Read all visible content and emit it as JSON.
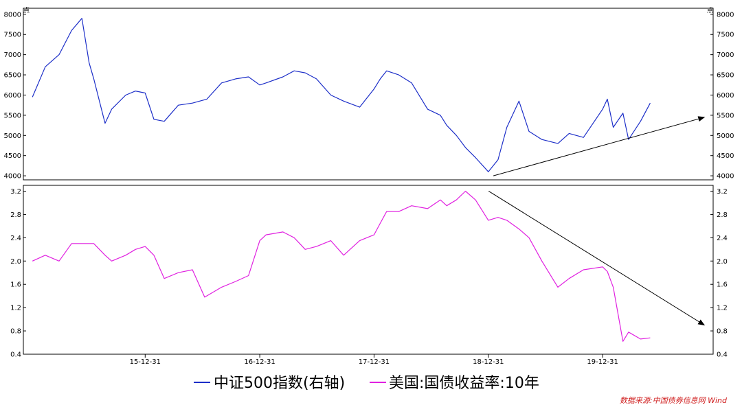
{
  "chart_data": {
    "type": "line",
    "x_tick_labels": [
      "15-12-31",
      "16-12-31",
      "17-12-31",
      "18-12-31",
      "19-12-31"
    ],
    "panels": [
      {
        "id": "top",
        "axis_unit": "点",
        "ylim": [
          3900,
          8150
        ],
        "y_ticks": [
          4000,
          4500,
          5000,
          5500,
          6000,
          6500,
          7000,
          7500,
          8000
        ],
        "series": {
          "name": "中证500指数(右轴)",
          "color": "#1c2ec8",
          "x": [
            "2015-01-05",
            "2015-02-15",
            "2015-03-31",
            "2015-05-10",
            "2015-06-12",
            "2015-07-05",
            "2015-07-20",
            "2015-08-25",
            "2015-09-15",
            "2015-10-30",
            "2015-11-30",
            "2015-12-31",
            "2016-01-28",
            "2016-03-01",
            "2016-04-15",
            "2016-05-30",
            "2016-07-15",
            "2016-08-31",
            "2016-10-15",
            "2016-11-25",
            "2016-12-31",
            "2017-01-20",
            "2017-03-15",
            "2017-04-20",
            "2017-05-25",
            "2017-06-30",
            "2017-08-15",
            "2017-09-25",
            "2017-11-15",
            "2017-12-31",
            "2018-01-20",
            "2018-02-09",
            "2018-03-20",
            "2018-04-30",
            "2018-06-20",
            "2018-07-31",
            "2018-08-20",
            "2018-09-20",
            "2018-10-19",
            "2018-11-20",
            "2018-12-31",
            "2019-01-31",
            "2019-02-28",
            "2019-04-08",
            "2019-05-10",
            "2019-06-20",
            "2019-08-10",
            "2019-09-15",
            "2019-10-31",
            "2019-12-31",
            "2020-01-15",
            "2020-02-03",
            "2020-03-05",
            "2020-03-23",
            "2020-04-30",
            "2020-05-31"
          ],
          "y": [
            5950,
            6700,
            7000,
            7600,
            7900,
            6800,
            6400,
            5300,
            5650,
            6000,
            6100,
            6050,
            5400,
            5350,
            5750,
            5800,
            5900,
            6300,
            6400,
            6450,
            6250,
            6300,
            6450,
            6600,
            6550,
            6400,
            6000,
            5850,
            5700,
            6150,
            6400,
            6600,
            6500,
            6300,
            5650,
            5500,
            5250,
            5000,
            4700,
            4450,
            4100,
            4400,
            5200,
            5850,
            5100,
            4900,
            4800,
            5050,
            4950,
            5650,
            5900,
            5200,
            5550,
            4900,
            5350,
            5800
          ]
        },
        "arrow": {
          "from": [
            "2019-01-16",
            4000
          ],
          "to": [
            "2020-11-20",
            5450
          ]
        }
      },
      {
        "id": "bottom",
        "ylim": [
          0.4,
          3.3
        ],
        "y_ticks": [
          0.4,
          0.8,
          1.2,
          1.6,
          2.0,
          2.4,
          2.8,
          3.2
        ],
        "series": {
          "name": "美国:国债收益率:10年",
          "color": "#e020e0",
          "x": [
            "2015-01-05",
            "2015-02-15",
            "2015-03-31",
            "2015-05-10",
            "2015-06-12",
            "2015-07-20",
            "2015-08-25",
            "2015-09-15",
            "2015-10-30",
            "2015-11-30",
            "2015-12-31",
            "2016-01-28",
            "2016-03-01",
            "2016-04-15",
            "2016-05-30",
            "2016-07-08",
            "2016-08-31",
            "2016-10-15",
            "2016-11-25",
            "2016-12-31",
            "2017-01-20",
            "2017-03-15",
            "2017-04-20",
            "2017-05-25",
            "2017-06-30",
            "2017-08-15",
            "2017-09-25",
            "2017-11-15",
            "2017-12-31",
            "2018-01-20",
            "2018-02-09",
            "2018-03-20",
            "2018-04-30",
            "2018-06-20",
            "2018-07-31",
            "2018-08-20",
            "2018-09-20",
            "2018-10-19",
            "2018-11-20",
            "2018-12-31",
            "2019-01-31",
            "2019-02-28",
            "2019-04-08",
            "2019-05-10",
            "2019-06-20",
            "2019-08-10",
            "2019-09-15",
            "2019-10-31",
            "2019-12-31",
            "2020-01-15",
            "2020-02-03",
            "2020-03-05",
            "2020-03-23",
            "2020-04-30",
            "2020-05-31"
          ],
          "y": [
            2.0,
            2.1,
            2.0,
            2.3,
            2.3,
            2.3,
            2.1,
            2.0,
            2.1,
            2.2,
            2.25,
            2.1,
            1.7,
            1.8,
            1.85,
            1.38,
            1.55,
            1.65,
            1.75,
            2.35,
            2.45,
            2.5,
            2.4,
            2.2,
            2.25,
            2.35,
            2.1,
            2.35,
            2.45,
            2.65,
            2.85,
            2.85,
            2.95,
            2.9,
            3.05,
            2.95,
            3.05,
            3.2,
            3.05,
            2.7,
            2.75,
            2.7,
            2.55,
            2.4,
            2.0,
            1.55,
            1.7,
            1.85,
            1.9,
            1.82,
            1.55,
            0.62,
            0.78,
            0.66,
            0.68
          ]
        },
        "arrow": {
          "from": [
            "2019-01-01",
            3.2
          ],
          "to": [
            "2020-11-20",
            0.9
          ]
        }
      }
    ],
    "legend_position": "bottom-center",
    "grid": false
  },
  "legend": {
    "index_label": "中证500指数(右轴)",
    "yield_label": "美国:国债收益率:10年"
  },
  "source": "数据来源:中国债券信息网 Wind"
}
